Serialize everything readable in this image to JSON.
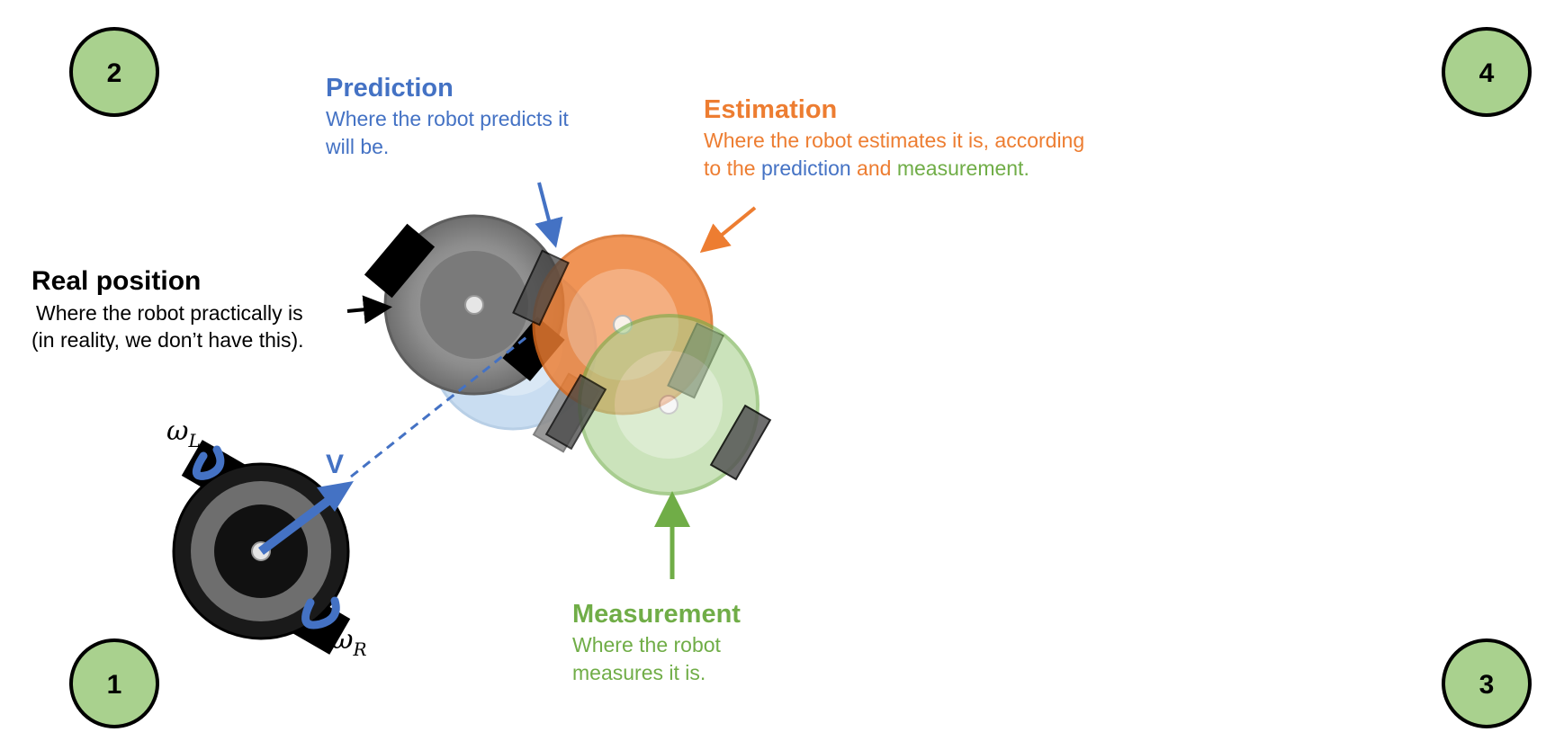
{
  "corners": [
    "2",
    "4",
    "1",
    "3"
  ],
  "labels": {
    "real": {
      "title": "Real position",
      "desc1": "Where the robot practically is",
      "desc2": "(in reality, we don’t have this)."
    },
    "prediction": {
      "title": "Prediction",
      "desc1": "Where the robot predicts it",
      "desc2": "will be."
    },
    "estimation": {
      "title": "Estimation",
      "desc1": "Where the robot estimates it is, according",
      "desc2_a": "to the ",
      "desc2_b": "prediction",
      "desc2_c": " and ",
      "desc2_d": "measurement."
    },
    "measurement": {
      "title": "Measurement",
      "desc1": "Where the robot",
      "desc2": "measures it is."
    }
  },
  "symbols": {
    "velocity": "V",
    "omega_left": "ω",
    "omega_left_sub": "L",
    "omega_right": "ω",
    "omega_right_sub": "R"
  },
  "colors": {
    "prediction": "#4472c4",
    "estimation": "#ed7d31",
    "measurement": "#70ad47",
    "real": "#000000",
    "corner_fill": "#a9d18e"
  }
}
